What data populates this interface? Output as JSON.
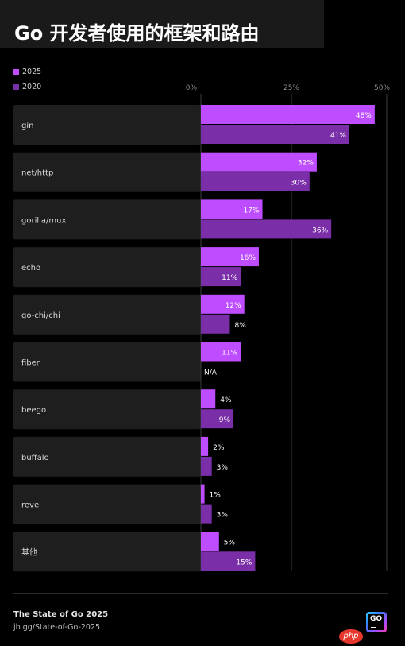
{
  "title": "Go 开发者使用的框架和路由",
  "colors": {
    "c2025": "#bd4dff",
    "c2020": "#7a2ea8",
    "row_bg": "#1e1e1e",
    "grid": "#3c3c3c"
  },
  "legend": [
    {
      "label": "2025",
      "color": "#bd4dff"
    },
    {
      "label": "2020",
      "color": "#7a2ea8"
    }
  ],
  "chart_data": {
    "type": "bar",
    "orientation": "horizontal",
    "title": "Go 开发者使用的框架和路由",
    "categories": [
      "gin",
      "net/http",
      "gorilla/mux",
      "echo",
      "go-chi/chi",
      "fiber",
      "beego",
      "buffalo",
      "revel",
      "其他"
    ],
    "series": [
      {
        "name": "2025",
        "values": [
          48,
          32,
          17,
          16,
          12,
          11,
          4,
          2,
          1,
          5
        ]
      },
      {
        "name": "2020",
        "values": [
          41,
          30,
          36,
          11,
          8,
          null,
          9,
          3,
          3,
          15
        ]
      }
    ],
    "value_labels": {
      "2025": [
        "48%",
        "32%",
        "17%",
        "16%",
        "12%",
        "11%",
        "4%",
        "2%",
        "1%",
        "5%"
      ],
      "2020": [
        "41%",
        "30%",
        "36%",
        "11%",
        "8%",
        "N/A",
        "9%",
        "3%",
        "3%",
        "15%"
      ]
    },
    "xlim": [
      0,
      50
    ],
    "x_ticks": [
      0,
      25,
      50
    ],
    "x_tick_labels": [
      "0%",
      "25%",
      "50%"
    ],
    "legend_position": "top-left",
    "grid": true
  },
  "footer": {
    "source_title": "The State of Go 2025",
    "source_url": "jb.gg/State-of-Go-2025",
    "logo_text": "GO"
  },
  "watermark": "php"
}
